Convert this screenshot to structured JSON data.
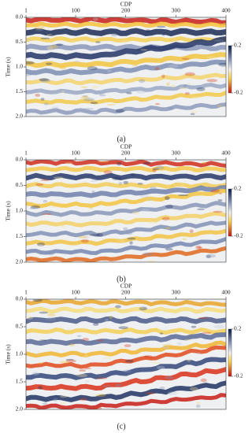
{
  "chart_data": [
    {
      "type": "image",
      "xlabel": "CDP",
      "ylabel": "Time (s)",
      "caption": "(a)",
      "xlim": [
        1,
        400
      ],
      "xticks": [
        1,
        100,
        200,
        300,
        400
      ],
      "ylim": [
        0,
        2
      ],
      "yticks": [
        {
          "value": 0,
          "label": "0.0"
        },
        0.5,
        {
          "value": 1,
          "label": "1.0"
        },
        1.5,
        {
          "value": 2,
          "label": "2.0"
        }
      ],
      "clim": [
        -0.2,
        0.2
      ],
      "colorbar_ticks": [
        0.2,
        -0.2
      ]
    },
    {
      "type": "image",
      "xlabel": "CDP",
      "ylabel": "Time (s)",
      "caption": "(b)",
      "xlim": [
        1,
        400
      ],
      "xticks": [
        1,
        100,
        200,
        300,
        400
      ],
      "ylim": [
        0,
        2
      ],
      "yticks": [
        {
          "value": 0,
          "label": "0.0"
        },
        0.5,
        {
          "value": 1,
          "label": "1.0"
        },
        1.5,
        {
          "value": 2,
          "label": "2.0"
        }
      ],
      "clim": [
        -0.2,
        0.2
      ],
      "colorbar_ticks": [
        0.2,
        -0.2
      ]
    },
    {
      "type": "image",
      "xlabel": "CDP",
      "ylabel": "Time (s)",
      "caption": "(c)",
      "xlim": [
        1,
        400
      ],
      "xticks": [
        1,
        100,
        200,
        300,
        400
      ],
      "ylim": [
        0,
        2
      ],
      "yticks": [
        {
          "value": 0,
          "label": "0.0"
        },
        0.5,
        {
          "value": 1,
          "label": "1.0"
        },
        1.5,
        {
          "value": 2,
          "label": "2.0"
        }
      ],
      "clim": [
        -0.2,
        0.2
      ],
      "colorbar_ticks": [
        0.2,
        -0.2
      ]
    }
  ]
}
